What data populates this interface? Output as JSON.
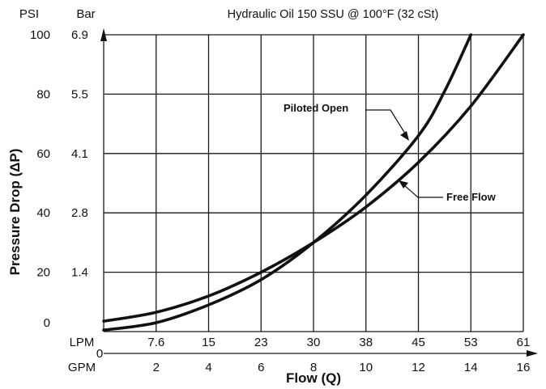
{
  "chart_data": {
    "type": "line",
    "title": "Hydraulic Oil 150 SSU @ 100°F (32 cSt)",
    "xlabel": "Flow (Q)",
    "ylabel": "Pressure Drop (ΔP)",
    "x_unit_primary": "GPM",
    "x_unit_secondary": "LPM",
    "y_unit_primary": "PSI",
    "y_unit_secondary": "Bar",
    "xlim": [
      0,
      16
    ],
    "ylim": [
      0,
      100
    ],
    "grid": true,
    "x_ticks_gpm": [
      "2",
      "4",
      "6",
      "8",
      "10",
      "12",
      "14",
      "16"
    ],
    "x_ticks_lpm": [
      "7.6",
      "15",
      "23",
      "30",
      "38",
      "45",
      "53",
      "61"
    ],
    "x_origin_label": "0",
    "y_ticks_psi": [
      "0",
      "20",
      "40",
      "60",
      "80",
      "100"
    ],
    "y_ticks_bar": [
      "1.4",
      "2.8",
      "4.1",
      "5.5",
      "6.9"
    ],
    "series": [
      {
        "name": "Piloted Open",
        "x": [
          0,
          2,
          4,
          6,
          8,
          10,
          12,
          13,
          14
        ],
        "y": [
          0.5,
          3,
          9,
          17.5,
          30,
          46,
          66,
          81,
          100
        ]
      },
      {
        "name": "Free Flow",
        "x": [
          0,
          2,
          4,
          6,
          8,
          10,
          12,
          14,
          16
        ],
        "y": [
          3.5,
          6.5,
          12,
          20,
          30,
          42,
          57,
          76,
          100
        ]
      }
    ]
  }
}
